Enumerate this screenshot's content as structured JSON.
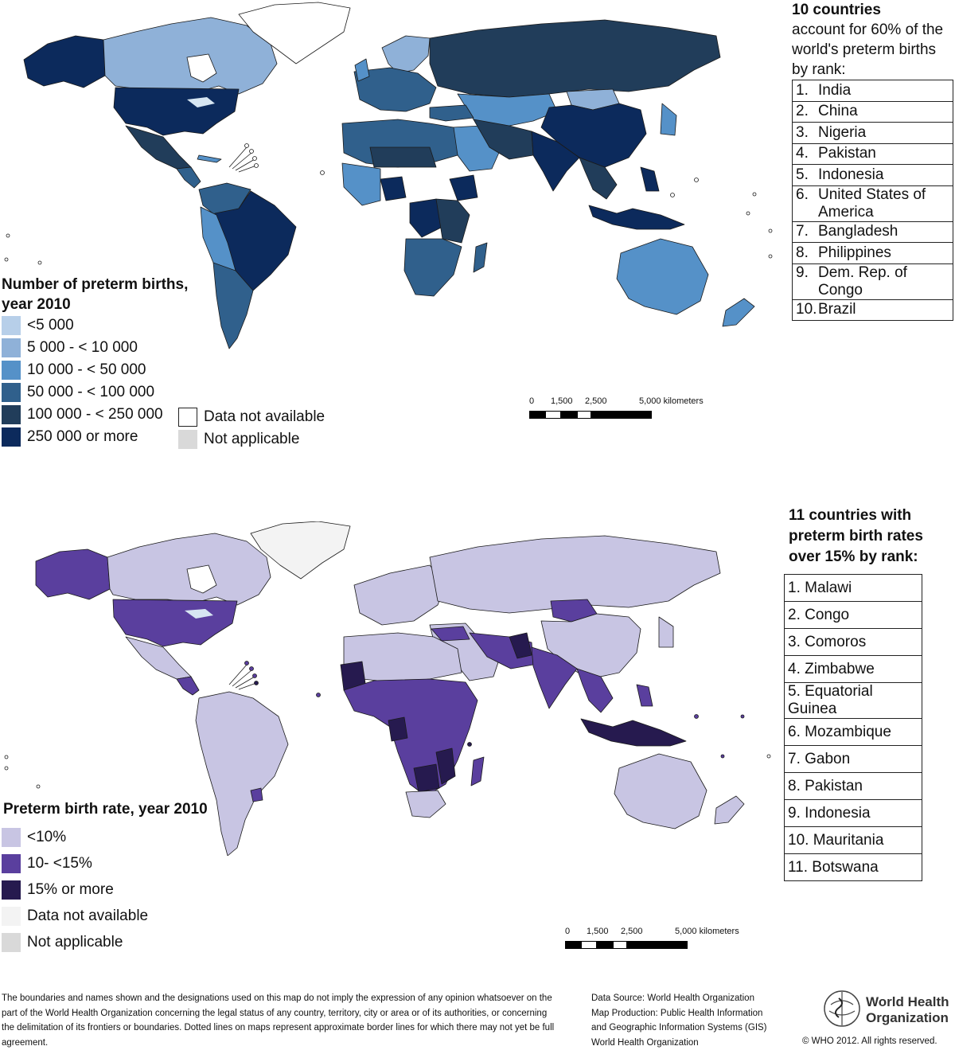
{
  "map1": {
    "legend_title": "Number of preterm births, year 2010",
    "legend": [
      {
        "label": "<5 000",
        "color": "#b7cfe9"
      },
      {
        "label": "5 000 - < 10 000",
        "color": "#8fb1d8"
      },
      {
        "label": "10 000 - < 50 000",
        "color": "#5591c8"
      },
      {
        "label": "50 000 - < 100 000",
        "color": "#30608c"
      },
      {
        "label": "100 000 - < 250 000",
        "color": "#213d5a"
      },
      {
        "label": "250 000 or more",
        "color": "#0c2a5c"
      }
    ],
    "extra_legend": [
      {
        "label": "Data not available",
        "color": "#ffffff"
      },
      {
        "label": "Not applicable",
        "color": "#d9d9d9"
      }
    ],
    "rank_head_bold": "10 countries",
    "rank_head_rest": "account for 60% of the world's preterm births by rank:",
    "rank": [
      {
        "n": "1.",
        "c": "India"
      },
      {
        "n": "2.",
        "c": "China"
      },
      {
        "n": "3.",
        "c": "Nigeria"
      },
      {
        "n": "4.",
        "c": "Pakistan"
      },
      {
        "n": "5.",
        "c": "Indonesia"
      },
      {
        "n": "6.",
        "c": "United States of America"
      },
      {
        "n": "7.",
        "c": "Bangladesh"
      },
      {
        "n": "8.",
        "c": "Philippines"
      },
      {
        "n": "9.",
        "c": "Dem. Rep. of Congo"
      },
      {
        "n": "10.",
        "c": "Brazil"
      }
    ],
    "scale": {
      "t0": "0",
      "t1": "1,500",
      "t2": "2,500",
      "t3": "5,000 kilometers"
    }
  },
  "map2": {
    "legend_title": "Preterm birth rate, year 2010",
    "legend": [
      {
        "label": "<10%",
        "color": "#c8c5e3"
      },
      {
        "label": "10- <15%",
        "color": "#5a3f9e"
      },
      {
        "label": "15% or more",
        "color": "#261a4f"
      },
      {
        "label": "Data not available",
        "color": "#f3f3f3"
      },
      {
        "label": "Not applicable",
        "color": "#d9d9d9"
      }
    ],
    "rank_head": "11 countries with preterm birth rates over 15% by rank:",
    "rank": [
      "1. Malawi",
      "2. Congo",
      "3. Comoros",
      "4. Zimbabwe",
      "5. Equatorial Guinea",
      "6. Mozambique",
      "7. Gabon",
      "8. Pakistan",
      "9. Indonesia",
      "10. Mauritania",
      "11. Botswana"
    ],
    "scale": {
      "t0": "0",
      "t1": "1,500",
      "t2": "2,500",
      "t3": "5,000 kilometers"
    }
  },
  "footer": {
    "disclaimer": "The boundaries and names shown and the designations used on this map do not imply the expression of any opinion whatsoever on the part of the World Health Organization concerning the legal status of any country, territory, city or area or of its authorities, or concerning the delimitation of its frontiers or boundaries.  Dotted lines on maps represent approximate border lines for which there may not yet be full agreement.",
    "source_1": "Data Source: World Health Organization",
    "source_2": "Map Production: Public Health Information",
    "source_3": "and Geographic Information Systems (GIS)",
    "source_4": "World Health Organization",
    "who_line1": "World Health",
    "who_line2": "Organization",
    "copyright": "© WHO 2012. All rights reserved."
  },
  "palette": {
    "map1": {
      "na": "#ffffff",
      "lightest": "#b7cfe9",
      "light": "#8fb1d8",
      "mid": "#5591c8",
      "dark": "#30608c",
      "darker": "#213d5a",
      "darkest": "#0c2a5c"
    },
    "map2": {
      "na": "#f3f3f3",
      "low": "#c8c5e3",
      "mid": "#5a3f9e",
      "high": "#261a4f"
    }
  }
}
